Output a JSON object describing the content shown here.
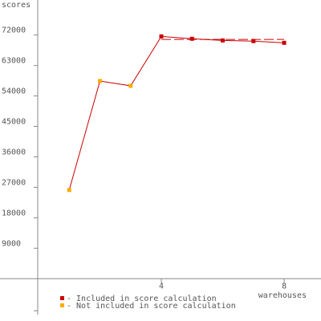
{
  "chart_data": {
    "type": "line",
    "y_label": "scores",
    "x_label": "warehouses",
    "x": [
      1,
      2,
      3,
      4,
      5,
      6,
      7,
      8
    ],
    "values": [
      26200,
      58400,
      57000,
      71600,
      70900,
      70400,
      70200,
      69700
    ],
    "point_status": [
      1,
      1,
      1,
      0,
      0,
      0,
      0,
      0
    ],
    "line_color": "#cc0000",
    "legend": [
      {
        "label": "- Included in score calculation",
        "color": "#cc0000"
      },
      {
        "label": "- Not included in score calculation",
        "color": "#ffaa00"
      }
    ],
    "score_line": {
      "value": 70700,
      "from": 4,
      "to": 8
    },
    "xlim": [
      0,
      9.2
    ],
    "xticks": [
      4,
      8
    ],
    "ylim": [
      -9000,
      81000
    ],
    "yticks": [
      9000,
      18000,
      27000,
      36000,
      45000,
      54000,
      63000,
      72000
    ]
  }
}
